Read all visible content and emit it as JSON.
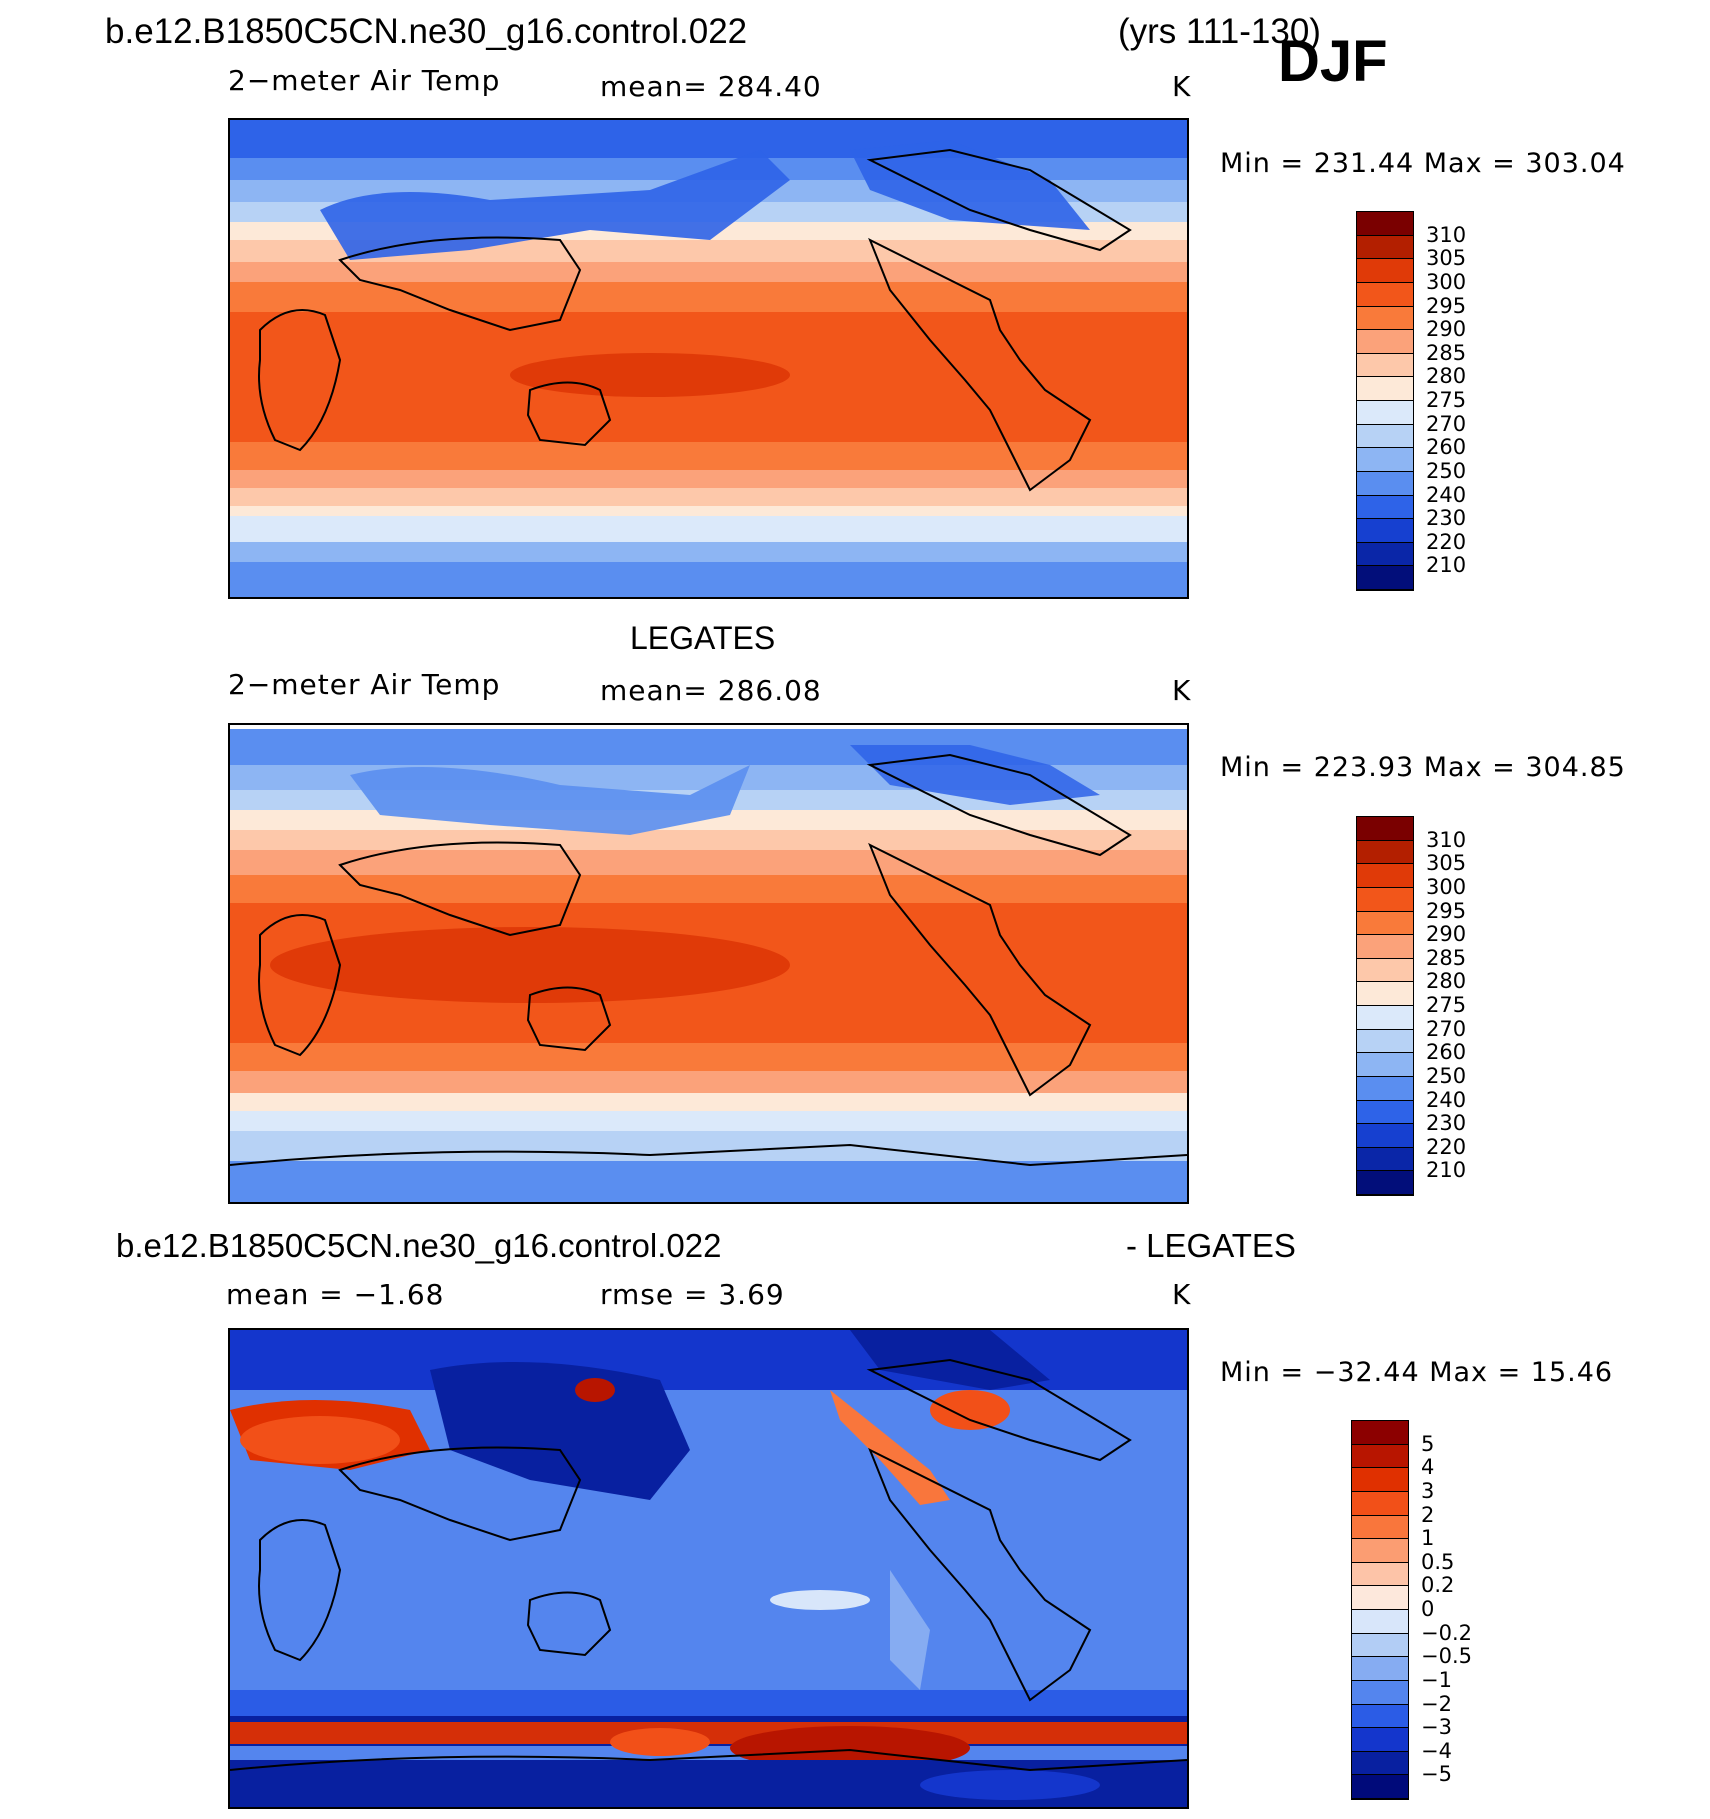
{
  "header": {
    "case_name": "b.e12.B1850C5CN.ne30_g16.control.022",
    "years": "(yrs 111-130)",
    "season": "DJF"
  },
  "panels": [
    {
      "id": "model",
      "title": "",
      "variable": "2−meter Air Temp",
      "mean_text": "mean=  284.40",
      "units": "K",
      "minmax_text": "Min  =  231.44  Max  =  303.04",
      "colorbar_labels": [
        "310",
        "305",
        "300",
        "295",
        "290",
        "285",
        "280",
        "275",
        "270",
        "260",
        "250",
        "240",
        "230",
        "220",
        "210"
      ]
    },
    {
      "id": "obs",
      "title": "LEGATES",
      "variable": "2−meter Air Temp",
      "mean_text": "mean=  286.08",
      "units": "K",
      "minmax_text": "Min  =  223.93  Max  =  304.85",
      "colorbar_labels": [
        "310",
        "305",
        "300",
        "295",
        "290",
        "285",
        "280",
        "275",
        "270",
        "260",
        "250",
        "240",
        "230",
        "220",
        "210"
      ]
    },
    {
      "id": "diff",
      "title_left": "b.e12.B1850C5CN.ne30_g16.control.022",
      "title_right": "- LEGATES",
      "mean_text": "mean  =    −1.68",
      "rmse_text": "rmse  =      3.69",
      "units": "K",
      "minmax_text": "Min  =  −32.44  Max  =    15.46",
      "colorbar_labels": [
        "5",
        "4",
        "3",
        "2",
        "1",
        "0.5",
        "0.2",
        "0",
        "−0.2",
        "−0.5",
        "−1",
        "−2",
        "−3",
        "−4",
        "−5"
      ]
    }
  ],
  "colors": {
    "temp_palette": [
      "#7a0000",
      "#b31f00",
      "#e03a08",
      "#f2561a",
      "#f97a3a",
      "#fba27a",
      "#fdc8aa",
      "#fde9d8",
      "#dbe9fa",
      "#b7d2f5",
      "#8db5f3",
      "#5a8ef0",
      "#2e63e8",
      "#1640d0",
      "#0a26a8",
      "#020e7a"
    ],
    "diff_palette": [
      "#8c0000",
      "#b81500",
      "#e03000",
      "#f25018",
      "#f9763c",
      "#fb9d72",
      "#fdc4a8",
      "#fde8dc",
      "#d8e6fa",
      "#b2cdf5",
      "#86acf2",
      "#5485ee",
      "#2b5ce6",
      "#1436cc",
      "#0820a0",
      "#000a7a"
    ]
  }
}
